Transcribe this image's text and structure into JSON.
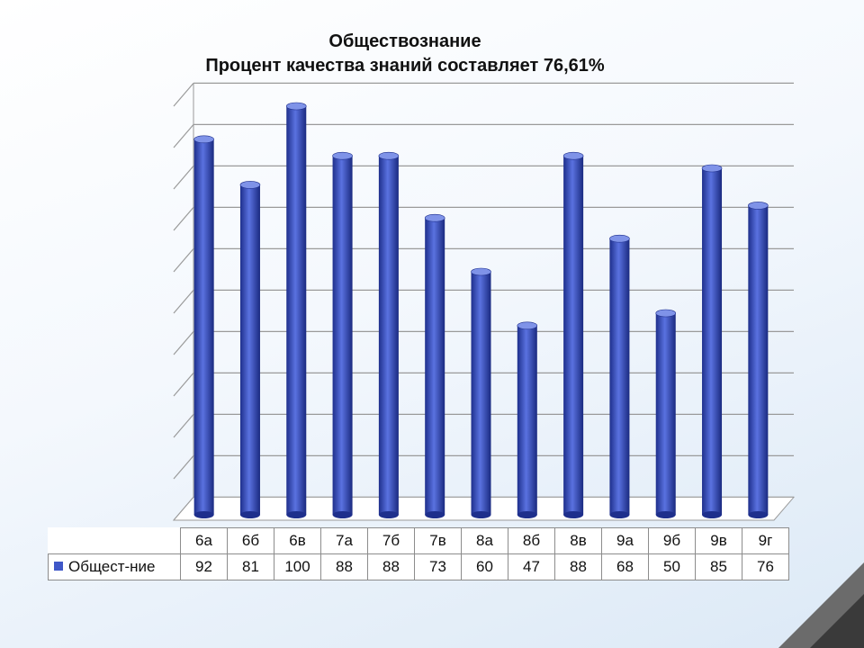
{
  "chart_data": {
    "type": "bar",
    "title": "Обществознание",
    "subtitle": "Процент качества знаний составляет 76,61%",
    "categories": [
      "6а",
      "6б",
      "6в",
      "7а",
      "7б",
      "7в",
      "8а",
      "8б",
      "8в",
      "9а",
      "9б",
      "9в",
      "9г"
    ],
    "series": [
      {
        "name": "Общест-ние",
        "values": [
          92,
          81,
          100,
          88,
          88,
          73,
          60,
          47,
          88,
          68,
          50,
          85,
          76
        ]
      }
    ],
    "ylim": [
      0,
      100
    ],
    "grid": true,
    "style": "3d-cylinder",
    "legend_placement": "data-table",
    "colors": {
      "bar": "#3f57c8",
      "bar_dark": "#1e2f8c",
      "bar_light": "#7f93e8",
      "grid": "#9a9a9a"
    }
  }
}
